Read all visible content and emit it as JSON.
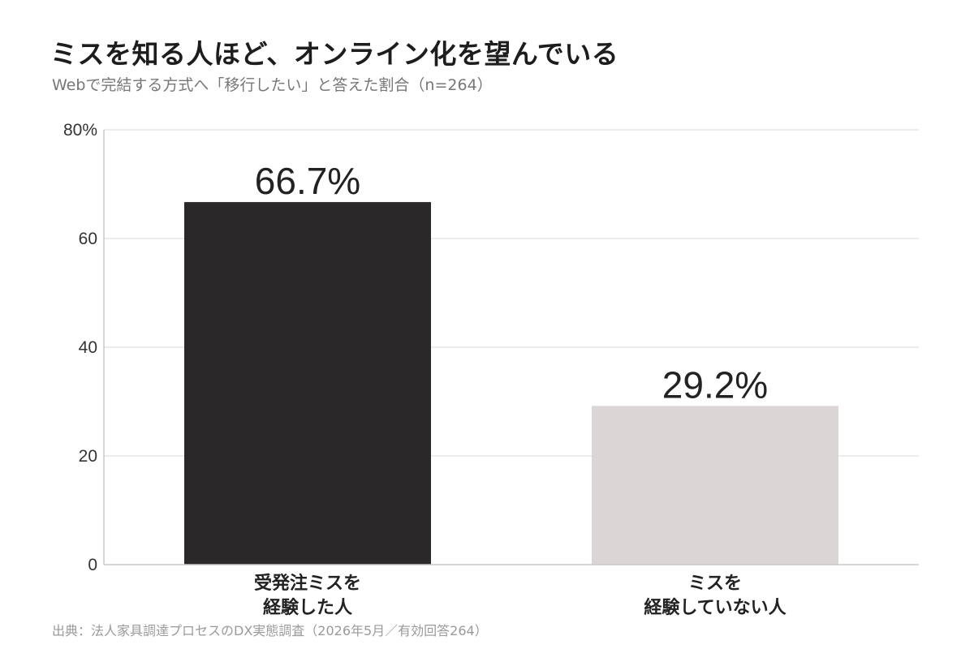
{
  "header": {
    "title": "ミスを知る人ほど、オンライン化を望んでいる",
    "subtitle": "Webで完結する方式へ「移行したい」と答えた割合（n=264）"
  },
  "footer": {
    "source": "出典：法人家具調達プロセスのDX実態調査（2026年5月／有効回答264）"
  },
  "chart_data": {
    "type": "bar",
    "categories": [
      [
        "受発注ミスを",
        "経験した人"
      ],
      [
        "ミスを",
        "経験していない人"
      ]
    ],
    "values": [
      66.7,
      29.2
    ],
    "value_labels": [
      "66.7%",
      "29.2%"
    ],
    "colors": [
      "#2a2829",
      "#dbd6d5"
    ],
    "ylim": [
      0,
      80
    ],
    "yticks": [
      {
        "value": 0,
        "label": "0"
      },
      {
        "value": 20,
        "label": "20"
      },
      {
        "value": 40,
        "label": "40"
      },
      {
        "value": 60,
        "label": "60"
      },
      {
        "value": 80,
        "label": "80%"
      }
    ],
    "grid": true,
    "grid_color": "#e6e6e6",
    "xlabel": "",
    "ylabel": ""
  }
}
